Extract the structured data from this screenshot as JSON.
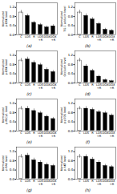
{
  "chart_data": [
    {
      "type": "bar",
      "title": "(a)",
      "ylabel": "Normalized\np-ERK level",
      "categories": [
        "C",
        "LDS",
        "R",
        "LDS\n+R",
        "DOX",
        "DOX\n+R"
      ],
      "values": [
        1.0,
        0.85,
        0.55,
        0.45,
        0.35,
        0.4
      ],
      "errors": [
        0.07,
        0.06,
        0.05,
        0.05,
        0.04,
        0.05
      ],
      "colors": [
        "white",
        "black",
        "black",
        "black",
        "black",
        "black"
      ],
      "ylim": [
        0,
        1.4
      ],
      "yticks": [
        0,
        0.4,
        0.8,
        1.2
      ]
    },
    {
      "type": "bar",
      "title": "(b)",
      "ylabel": "Normalized\nTG-1 adducin level",
      "categories": [
        "C",
        "LDS",
        "R",
        "LDS\n+R",
        "DOX",
        "DOX\n+R"
      ],
      "values": [
        1.0,
        0.85,
        0.7,
        0.5,
        0.25,
        0.2
      ],
      "errors": [
        0.08,
        0.07,
        0.06,
        0.05,
        0.04,
        0.03
      ],
      "colors": [
        "white",
        "black",
        "black",
        "black",
        "black",
        "black"
      ],
      "ylim": [
        0,
        1.4
      ],
      "yticks": [
        0,
        0.4,
        0.8,
        1.2
      ]
    },
    {
      "type": "bar",
      "title": "(c)",
      "ylabel": "Normalized\np-ERK level",
      "categories": [
        "C",
        "LDS",
        "R",
        "LDS\n+R",
        "DOX",
        "DOX\n+R"
      ],
      "values": [
        1.0,
        1.05,
        0.9,
        0.8,
        0.6,
        0.5
      ],
      "errors": [
        0.08,
        0.08,
        0.07,
        0.06,
        0.06,
        0.05
      ],
      "colors": [
        "white",
        "black",
        "black",
        "black",
        "black",
        "black"
      ],
      "ylim": [
        0,
        1.4
      ],
      "yticks": [
        0,
        0.4,
        0.8,
        1.2
      ]
    },
    {
      "type": "bar",
      "title": "(d)",
      "ylabel": "Normalized\nOccludin level",
      "categories": [
        "C",
        "LDS",
        "R",
        "LDS\n+R",
        "DOX",
        "DOX\n+R"
      ],
      "values": [
        1.0,
        0.75,
        0.55,
        0.3,
        0.15,
        0.1
      ],
      "errors": [
        0.08,
        0.06,
        0.05,
        0.04,
        0.03,
        0.02
      ],
      "colors": [
        "white",
        "black",
        "black",
        "black",
        "black",
        "black"
      ],
      "ylim": [
        0,
        1.4
      ],
      "yticks": [
        0,
        0.4,
        0.8,
        1.2
      ]
    },
    {
      "type": "bar",
      "title": "(e)",
      "ylabel": "Normalized\np-PLCy1 level",
      "categories": [
        "C",
        "LDS",
        "R",
        "LDS\n+R",
        "DOX",
        "DOX\n+R"
      ],
      "values": [
        1.0,
        1.0,
        0.9,
        0.8,
        0.65,
        0.55
      ],
      "errors": [
        0.08,
        0.08,
        0.07,
        0.06,
        0.05,
        0.05
      ],
      "colors": [
        "white",
        "black",
        "black",
        "black",
        "black",
        "black"
      ],
      "ylim": [
        0,
        1.4
      ],
      "yticks": [
        0,
        0.4,
        0.8,
        1.2
      ]
    },
    {
      "type": "bar",
      "title": "(f)",
      "ylabel": "Normalized\np-p70S level",
      "categories": [
        "C",
        "LDS",
        "R",
        "LDS\n+R",
        "DOX",
        "DOX\n+R"
      ],
      "values": [
        1.0,
        1.0,
        0.95,
        0.85,
        0.8,
        0.7
      ],
      "errors": [
        0.07,
        0.07,
        0.06,
        0.06,
        0.06,
        0.05
      ],
      "colors": [
        "white",
        "black",
        "black",
        "black",
        "black",
        "black"
      ],
      "ylim": [
        0,
        1.4
      ],
      "yticks": [
        0,
        0.4,
        0.8,
        1.2
      ]
    },
    {
      "type": "bar",
      "title": "(g)",
      "ylabel": "Normalized\np-FAK level",
      "categories": [
        "C",
        "LDS",
        "R",
        "LDS\n+R",
        "DOX",
        "DOX\n+R"
      ],
      "values": [
        1.0,
        1.05,
        0.85,
        0.75,
        0.65,
        0.6
      ],
      "errors": [
        0.08,
        0.08,
        0.07,
        0.06,
        0.06,
        0.05
      ],
      "colors": [
        "white",
        "black",
        "black",
        "black",
        "black",
        "black"
      ],
      "ylim": [
        0,
        1.4
      ],
      "yticks": [
        0,
        0.4,
        0.8,
        1.2
      ]
    },
    {
      "type": "bar",
      "title": "(h)",
      "ylabel": "Normalized\np-AKT level",
      "categories": [
        "C",
        "LDS",
        "R",
        "LDS\n+R",
        "DOX",
        "DOX\n+R"
      ],
      "values": [
        1.0,
        1.0,
        0.88,
        0.75,
        0.6,
        0.55
      ],
      "errors": [
        0.08,
        0.07,
        0.07,
        0.06,
        0.05,
        0.05
      ],
      "colors": [
        "white",
        "black",
        "black",
        "black",
        "black",
        "black"
      ],
      "ylim": [
        0,
        1.4
      ],
      "yticks": [
        0,
        0.4,
        0.8,
        1.2
      ]
    }
  ]
}
